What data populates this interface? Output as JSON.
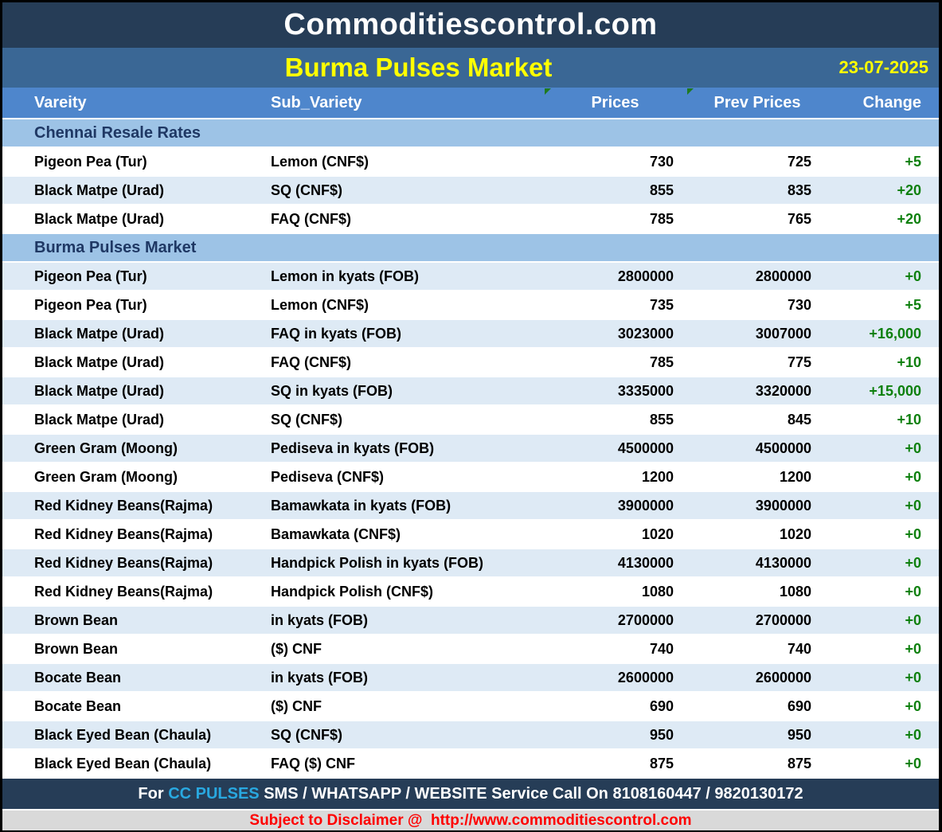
{
  "header": {
    "site_title": "Commoditiescontrol.com",
    "report_title": "Burma Pulses Market",
    "report_date": "23-07-2025"
  },
  "table": {
    "columns": [
      "Vareity",
      "Sub_Variety",
      "Prices",
      "Prev Prices",
      "Change"
    ],
    "sections": [
      {
        "title": "Chennai Resale Rates",
        "rows": [
          {
            "variety": "Pigeon Pea (Tur)",
            "sub_variety": "Lemon (CNF$)",
            "price": "730",
            "prev_price": "725",
            "change": "+5"
          },
          {
            "variety": "Black Matpe (Urad)",
            "sub_variety": "SQ (CNF$)",
            "price": "855",
            "prev_price": "835",
            "change": "+20"
          },
          {
            "variety": "Black Matpe (Urad)",
            "sub_variety": "FAQ (CNF$)",
            "price": "785",
            "prev_price": "765",
            "change": "+20"
          }
        ]
      },
      {
        "title": "Burma Pulses Market",
        "rows": [
          {
            "variety": "Pigeon Pea (Tur)",
            "sub_variety": "Lemon in kyats (FOB)",
            "price": "2800000",
            "prev_price": "2800000",
            "change": "+0"
          },
          {
            "variety": "Pigeon Pea (Tur)",
            "sub_variety": "Lemon (CNF$)",
            "price": "735",
            "prev_price": "730",
            "change": "+5"
          },
          {
            "variety": "Black Matpe (Urad)",
            "sub_variety": "FAQ in kyats (FOB)",
            "price": "3023000",
            "prev_price": "3007000",
            "change": "+16,000"
          },
          {
            "variety": "Black Matpe (Urad)",
            "sub_variety": "FAQ (CNF$)",
            "price": "785",
            "prev_price": "775",
            "change": "+10"
          },
          {
            "variety": "Black Matpe (Urad)",
            "sub_variety": "SQ in kyats (FOB)",
            "price": "3335000",
            "prev_price": "3320000",
            "change": "+15,000"
          },
          {
            "variety": "Black Matpe (Urad)",
            "sub_variety": "SQ (CNF$)",
            "price": "855",
            "prev_price": "845",
            "change": "+10"
          },
          {
            "variety": "Green Gram (Moong)",
            "sub_variety": "Pediseva in kyats (FOB)",
            "price": "4500000",
            "prev_price": "4500000",
            "change": "+0"
          },
          {
            "variety": "Green Gram (Moong)",
            "sub_variety": "Pediseva (CNF$)",
            "price": "1200",
            "prev_price": "1200",
            "change": "+0"
          },
          {
            "variety": "Red Kidney Beans(Rajma)",
            "sub_variety": "Bamawkata in kyats (FOB)",
            "price": "3900000",
            "prev_price": "3900000",
            "change": "+0"
          },
          {
            "variety": "Red Kidney Beans(Rajma)",
            "sub_variety": "Bamawkata (CNF$)",
            "price": "1020",
            "prev_price": "1020",
            "change": "+0"
          },
          {
            "variety": "Red Kidney Beans(Rajma)",
            "sub_variety": "Handpick Polish in kyats (FOB)",
            "price": "4130000",
            "prev_price": "4130000",
            "change": "+0"
          },
          {
            "variety": "Red Kidney Beans(Rajma)",
            "sub_variety": "Handpick Polish (CNF$)",
            "price": "1080",
            "prev_price": "1080",
            "change": "+0"
          },
          {
            "variety": "Brown Bean",
            "sub_variety": "in kyats (FOB)",
            "price": "2700000",
            "prev_price": "2700000",
            "change": "+0"
          },
          {
            "variety": "Brown Bean",
            "sub_variety": "($) CNF",
            "price": "740",
            "prev_price": "740",
            "change": "+0"
          },
          {
            "variety": "Bocate Bean",
            "sub_variety": "in kyats (FOB)",
            "price": "2600000",
            "prev_price": "2600000",
            "change": "+0"
          },
          {
            "variety": "Bocate Bean",
            "sub_variety": "($) CNF",
            "price": "690",
            "prev_price": "690",
            "change": "+0"
          },
          {
            "variety": "Black Eyed Bean (Chaula)",
            "sub_variety": "SQ (CNF$)",
            "price": "950",
            "prev_price": "950",
            "change": "+0"
          },
          {
            "variety": "Black Eyed Bean (Chaula)",
            "sub_variety": "FAQ ($) CNF",
            "price": "875",
            "prev_price": "875",
            "change": "+0"
          }
        ]
      }
    ]
  },
  "footer": {
    "service_prefix": "For ",
    "service_highlight": "CC PULSES",
    "service_suffix": " SMS / WHATSAPP / WEBSITE Service Call On 8108160447 / 9820130172",
    "disclaimer": "Subject to Disclaimer @  http://www.commoditiescontrol.com"
  },
  "colors": {
    "header_bg": "#263D57",
    "band_bg": "#3A6795",
    "column_header_bg": "#4E86CC",
    "section_bg": "#9DC3E6",
    "stripe_bg": "#DEEAF5",
    "section_text": "#1F3864",
    "title_yellow": "#FFFF00",
    "change_green": "#0E800E",
    "footer_bg": "#263D57",
    "footer_highlight": "#29A8E0",
    "disclaimer_bg": "#D9D9D9",
    "disclaimer_text": "#FF0000",
    "flag_green": "#1F7A1F"
  }
}
